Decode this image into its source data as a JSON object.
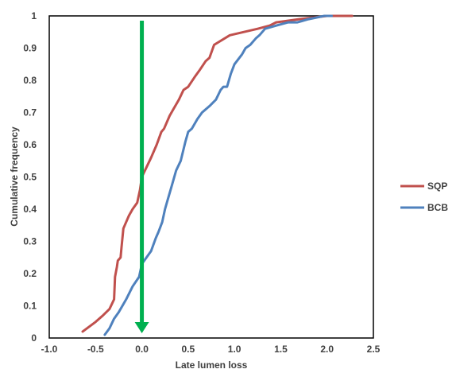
{
  "chart_data": {
    "type": "line",
    "title": "",
    "xlabel": "Late lumen loss",
    "ylabel": "Cumulative frequency",
    "xlim": [
      -1.0,
      2.5
    ],
    "ylim": [
      0,
      1
    ],
    "x_ticks": [
      "-1.0",
      "-0.5",
      "0.0",
      "0.5",
      "1.0",
      "1.5",
      "2.0",
      "2.5"
    ],
    "x_tick_values": [
      -1.0,
      -0.5,
      0.0,
      0.5,
      1.0,
      1.5,
      2.0,
      2.5
    ],
    "y_ticks": [
      "0",
      "0.1",
      "0.2",
      "0.3",
      "0.4",
      "0.5",
      "0.6",
      "0.7",
      "0.8",
      "0.9",
      "1"
    ],
    "y_tick_values": [
      0,
      0.1,
      0.2,
      0.3,
      0.4,
      0.5,
      0.6,
      0.7,
      0.8,
      0.9,
      1
    ],
    "grid": false,
    "legend_position": "right",
    "series": [
      {
        "name": "SQP",
        "color": "#c0504d",
        "x": [
          -0.64,
          -0.5,
          -0.42,
          -0.35,
          -0.3,
          -0.29,
          -0.27,
          -0.26,
          -0.23,
          -0.22,
          -0.2,
          -0.17,
          -0.14,
          -0.1,
          -0.05,
          -0.02,
          0.0,
          0.05,
          0.1,
          0.16,
          0.21,
          0.24,
          0.3,
          0.34,
          0.4,
          0.45,
          0.5,
          0.57,
          0.62,
          0.69,
          0.73,
          0.78,
          0.95,
          1.25,
          1.38,
          1.45,
          1.7,
          2.0,
          2.27
        ],
        "y": [
          0.02,
          0.05,
          0.07,
          0.09,
          0.12,
          0.19,
          0.22,
          0.24,
          0.25,
          0.28,
          0.34,
          0.36,
          0.38,
          0.4,
          0.42,
          0.46,
          0.5,
          0.53,
          0.56,
          0.6,
          0.64,
          0.65,
          0.69,
          0.71,
          0.74,
          0.77,
          0.78,
          0.81,
          0.83,
          0.86,
          0.87,
          0.91,
          0.94,
          0.96,
          0.97,
          0.98,
          0.99,
          1.0,
          1.0
        ]
      },
      {
        "name": "BCB",
        "color": "#4f81bd",
        "x": [
          -0.4,
          -0.35,
          -0.3,
          -0.25,
          -0.17,
          -0.1,
          -0.03,
          0.0,
          0.05,
          0.1,
          0.15,
          0.18,
          0.22,
          0.25,
          0.28,
          0.32,
          0.37,
          0.42,
          0.47,
          0.5,
          0.54,
          0.6,
          0.65,
          0.73,
          0.8,
          0.85,
          0.88,
          0.92,
          0.96,
          1.0,
          1.08,
          1.12,
          1.17,
          1.23,
          1.27,
          1.33,
          1.45,
          1.58,
          1.68,
          1.8,
          1.97,
          2.05
        ],
        "y": [
          0.01,
          0.03,
          0.06,
          0.08,
          0.12,
          0.16,
          0.19,
          0.23,
          0.25,
          0.27,
          0.31,
          0.33,
          0.36,
          0.4,
          0.43,
          0.47,
          0.52,
          0.55,
          0.61,
          0.64,
          0.65,
          0.68,
          0.7,
          0.72,
          0.74,
          0.77,
          0.78,
          0.78,
          0.82,
          0.85,
          0.88,
          0.9,
          0.91,
          0.93,
          0.94,
          0.96,
          0.97,
          0.98,
          0.98,
          0.99,
          1.0,
          1.0
        ]
      }
    ],
    "annotations": [
      {
        "type": "arrow",
        "color": "#00b050",
        "x": 0.0,
        "y_from": 1.0,
        "y_to": 0.0
      }
    ]
  }
}
